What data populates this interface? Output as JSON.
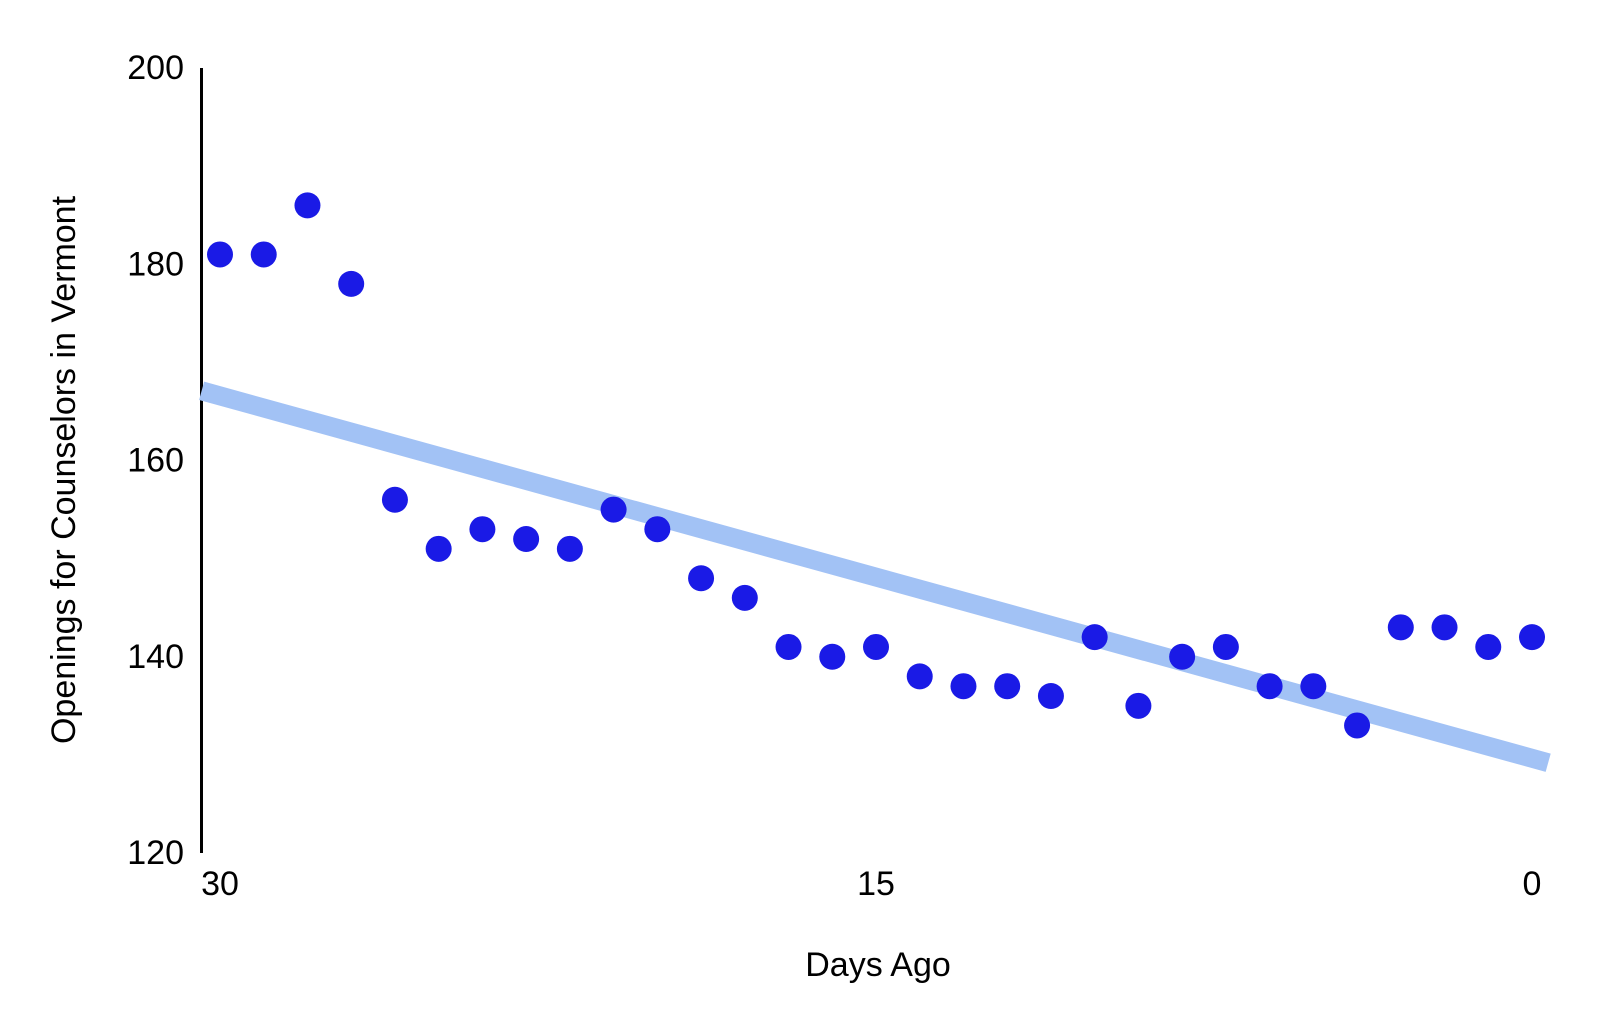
{
  "chart_data": {
    "type": "scatter",
    "title": "",
    "xlabel": "Days Ago",
    "ylabel": "Openings for Counselors in Vermont",
    "x_ticks": [
      "30",
      "15",
      "0"
    ],
    "x_tick_values": [
      30,
      15,
      0
    ],
    "y_ticks": [
      "120",
      "140",
      "160",
      "180",
      "200"
    ],
    "y_tick_values": [
      120,
      140,
      160,
      180,
      200
    ],
    "xlim": [
      30.45,
      -1.65
    ],
    "ylim": [
      120,
      200
    ],
    "x_axis_reversed": true,
    "grid": false,
    "legend": "none",
    "points": [
      {
        "x": 30,
        "y": 181
      },
      {
        "x": 29,
        "y": 181
      },
      {
        "x": 28,
        "y": 186
      },
      {
        "x": 27,
        "y": 178
      },
      {
        "x": 26,
        "y": 156
      },
      {
        "x": 25,
        "y": 151
      },
      {
        "x": 24,
        "y": 153
      },
      {
        "x": 23,
        "y": 152
      },
      {
        "x": 22,
        "y": 151
      },
      {
        "x": 21,
        "y": 155
      },
      {
        "x": 20,
        "y": 153
      },
      {
        "x": 19,
        "y": 148
      },
      {
        "x": 18,
        "y": 146
      },
      {
        "x": 17,
        "y": 141
      },
      {
        "x": 16,
        "y": 140
      },
      {
        "x": 15,
        "y": 141
      },
      {
        "x": 14,
        "y": 138
      },
      {
        "x": 13,
        "y": 137
      },
      {
        "x": 12,
        "y": 137
      },
      {
        "x": 11,
        "y": 136
      },
      {
        "x": 10,
        "y": 142
      },
      {
        "x": 9,
        "y": 135
      },
      {
        "x": 8,
        "y": 140
      },
      {
        "x": 7,
        "y": 141
      },
      {
        "x": 6,
        "y": 137
      },
      {
        "x": 5,
        "y": 137
      },
      {
        "x": 4,
        "y": 133
      },
      {
        "x": 3,
        "y": 143
      },
      {
        "x": 2,
        "y": 143
      },
      {
        "x": 1,
        "y": 141
      },
      {
        "x": 0,
        "y": 142
      }
    ],
    "trendline": {
      "x1": 30.42,
      "y1": 167.1,
      "x2": -0.37,
      "y2": 129.2
    },
    "colors": {
      "point": "#1a1ae6",
      "trendline": "#a2c2f5",
      "axis": "#000000",
      "background": "#ffffff"
    }
  }
}
